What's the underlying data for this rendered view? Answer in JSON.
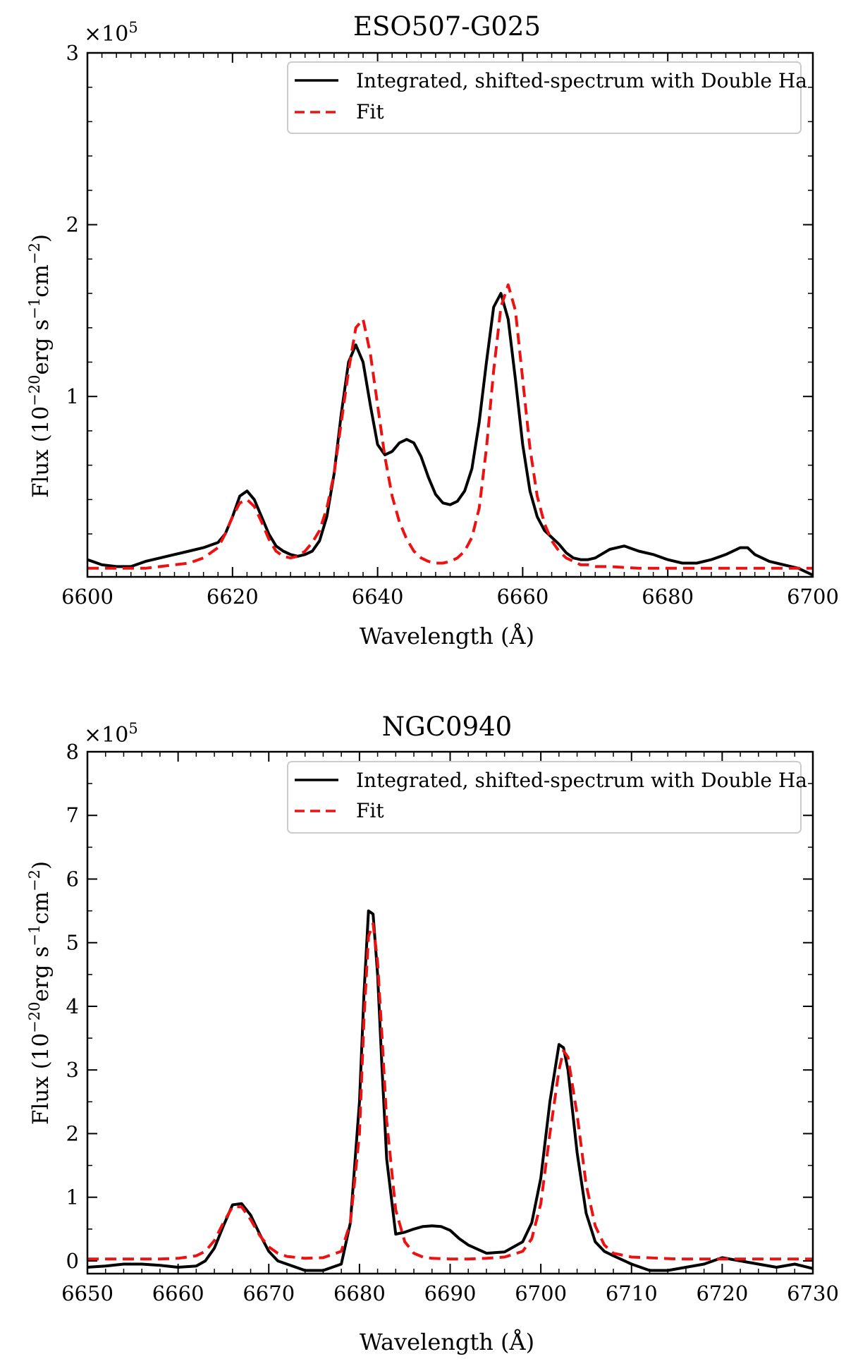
{
  "chart_data": [
    {
      "type": "line",
      "title": "ESO507-G025",
      "xlabel": "Wavelength (Å)",
      "ylabel": "Flux (10⁻²⁰erg s⁻¹cm⁻²)",
      "xlim": [
        6600,
        6700
      ],
      "ylim": [
        -0.05,
        3.0
      ],
      "y_multiplier": "×10⁵",
      "x_ticks": [
        6600,
        6620,
        6640,
        6660,
        6680,
        6700
      ],
      "y_ticks": [
        1,
        2,
        3
      ],
      "legend_position": "top-right",
      "series": [
        {
          "name": "Integrated, shifted-spectrum with Double Ha",
          "color": "#000000",
          "style": "solid",
          "x": [
            6600,
            6602,
            6604,
            6606,
            6608,
            6610,
            6612,
            6614,
            6616,
            6618,
            6619,
            6620,
            6621,
            6622,
            6623,
            6624,
            6625,
            6626,
            6627,
            6628,
            6629,
            6630,
            6631,
            6632,
            6633,
            6634,
            6635,
            6636,
            6637,
            6638,
            6639,
            6640,
            6641,
            6642,
            6643,
            6644,
            6645,
            6646,
            6647,
            6648,
            6649,
            6650,
            6651,
            6652,
            6653,
            6654,
            6655,
            6656,
            6657,
            6658,
            6659,
            6660,
            6661,
            6662,
            6663,
            6664,
            6665,
            6666,
            6667,
            6668,
            6669,
            6670,
            6672,
            6674,
            6676,
            6678,
            6680,
            6682,
            6684,
            6686,
            6688,
            6690,
            6691,
            6692,
            6694,
            6696,
            6698,
            6700
          ],
          "y": [
            0.05,
            0.02,
            0.01,
            0.01,
            0.04,
            0.06,
            0.08,
            0.1,
            0.12,
            0.15,
            0.2,
            0.3,
            0.42,
            0.45,
            0.4,
            0.3,
            0.2,
            0.13,
            0.1,
            0.08,
            0.07,
            0.08,
            0.1,
            0.16,
            0.3,
            0.55,
            0.9,
            1.2,
            1.3,
            1.2,
            0.95,
            0.72,
            0.66,
            0.68,
            0.73,
            0.75,
            0.73,
            0.65,
            0.53,
            0.43,
            0.38,
            0.37,
            0.39,
            0.45,
            0.58,
            0.85,
            1.2,
            1.52,
            1.6,
            1.45,
            1.1,
            0.72,
            0.45,
            0.3,
            0.22,
            0.18,
            0.14,
            0.09,
            0.06,
            0.05,
            0.05,
            0.06,
            0.11,
            0.13,
            0.1,
            0.08,
            0.05,
            0.03,
            0.03,
            0.05,
            0.08,
            0.12,
            0.12,
            0.08,
            0.04,
            0.02,
            0.0,
            -0.04
          ]
        },
        {
          "name": "Fit",
          "color": "#ee1111",
          "style": "dashed",
          "x": [
            6600,
            6602,
            6604,
            6606,
            6608,
            6610,
            6612,
            6614,
            6616,
            6618,
            6619,
            6620,
            6621,
            6622,
            6623,
            6624,
            6625,
            6626,
            6627,
            6628,
            6629,
            6630,
            6631,
            6632,
            6633,
            6634,
            6635,
            6636,
            6637,
            6638,
            6639,
            6640,
            6641,
            6642,
            6643,
            6644,
            6645,
            6646,
            6647,
            6648,
            6649,
            6650,
            6651,
            6652,
            6653,
            6654,
            6655,
            6656,
            6657,
            6658,
            6659,
            6660,
            6661,
            6662,
            6663,
            6664,
            6665,
            6666,
            6667,
            6668,
            6669,
            6670,
            6672,
            6676,
            6680,
            6684,
            6688,
            6692,
            6696,
            6700
          ],
          "y": [
            0.0,
            0.0,
            0.0,
            0.0,
            0.0,
            0.01,
            0.02,
            0.03,
            0.06,
            0.12,
            0.2,
            0.3,
            0.38,
            0.4,
            0.36,
            0.27,
            0.17,
            0.1,
            0.07,
            0.06,
            0.07,
            0.1,
            0.15,
            0.22,
            0.35,
            0.55,
            0.85,
            1.15,
            1.4,
            1.45,
            1.25,
            0.95,
            0.65,
            0.42,
            0.27,
            0.17,
            0.1,
            0.06,
            0.04,
            0.03,
            0.03,
            0.04,
            0.06,
            0.1,
            0.18,
            0.35,
            0.7,
            1.15,
            1.52,
            1.65,
            1.5,
            1.1,
            0.7,
            0.42,
            0.26,
            0.16,
            0.1,
            0.06,
            0.04,
            0.02,
            0.02,
            0.01,
            0.01,
            0.0,
            0.0,
            0.0,
            0.0,
            0.0,
            0.0,
            0.0
          ]
        }
      ]
    },
    {
      "type": "line",
      "title": "NGC0940",
      "xlabel": "Wavelength (Å)",
      "ylabel": "Flux (10⁻²⁰erg s⁻¹cm⁻²)",
      "xlim": [
        6650,
        6730
      ],
      "ylim": [
        -0.2,
        8.0
      ],
      "y_multiplier": "×10⁵",
      "x_ticks": [
        6650,
        6660,
        6670,
        6680,
        6690,
        6700,
        6710,
        6720,
        6730
      ],
      "y_ticks": [
        0,
        1,
        2,
        3,
        4,
        5,
        6,
        7,
        8
      ],
      "legend_position": "top-right",
      "series": [
        {
          "name": "Integrated, shifted-spectrum with Double Ha",
          "color": "#000000",
          "style": "solid",
          "x": [
            6650,
            6652,
            6654,
            6656,
            6658,
            6660,
            6662,
            6663,
            6664,
            6665,
            6666,
            6667,
            6668,
            6669,
            6670,
            6671,
            6672,
            6674,
            6676,
            6678,
            6679,
            6680,
            6680.5,
            6681,
            6681.5,
            6682,
            6682.5,
            6683,
            6684,
            6685,
            6686,
            6687,
            6688,
            6689,
            6690,
            6691,
            6692,
            6694,
            6696,
            6698,
            6699,
            6700,
            6701,
            6702,
            6702.5,
            6703,
            6704,
            6705,
            6706,
            6707,
            6708,
            6710,
            6712,
            6714,
            6716,
            6718,
            6720,
            6722,
            6724,
            6726,
            6728,
            6730
          ],
          "y": [
            -0.1,
            -0.08,
            -0.05,
            -0.05,
            -0.07,
            -0.1,
            -0.08,
            0.0,
            0.2,
            0.55,
            0.88,
            0.9,
            0.72,
            0.42,
            0.15,
            0.0,
            -0.05,
            -0.15,
            -0.15,
            -0.05,
            0.6,
            2.5,
            4.2,
            5.5,
            5.45,
            4.5,
            3.0,
            1.6,
            0.42,
            0.45,
            0.5,
            0.54,
            0.55,
            0.54,
            0.48,
            0.35,
            0.25,
            0.12,
            0.14,
            0.3,
            0.6,
            1.3,
            2.5,
            3.4,
            3.35,
            3.0,
            1.7,
            0.75,
            0.3,
            0.15,
            0.08,
            -0.05,
            -0.15,
            -0.15,
            -0.1,
            -0.05,
            0.05,
            0.0,
            -0.05,
            -0.1,
            -0.05,
            -0.12
          ]
        },
        {
          "name": "Fit",
          "color": "#ee1111",
          "style": "dashed",
          "x": [
            6650,
            6652,
            6654,
            6656,
            6658,
            6660,
            6662,
            6663,
            6664,
            6665,
            6666,
            6667,
            6668,
            6669,
            6670,
            6671,
            6672,
            6674,
            6676,
            6678,
            6679,
            6680,
            6680.5,
            6681,
            6681.5,
            6682,
            6682.5,
            6683,
            6684,
            6685,
            6686,
            6687,
            6688,
            6690,
            6692,
            6694,
            6696,
            6698,
            6699,
            6700,
            6701,
            6702,
            6702.5,
            6703,
            6704,
            6705,
            6706,
            6707,
            6708,
            6710,
            6715,
            6720,
            6725,
            6730
          ],
          "y": [
            0.03,
            0.03,
            0.03,
            0.03,
            0.03,
            0.04,
            0.08,
            0.15,
            0.32,
            0.6,
            0.85,
            0.85,
            0.65,
            0.4,
            0.22,
            0.12,
            0.07,
            0.04,
            0.05,
            0.15,
            0.6,
            2.0,
            3.8,
            5.1,
            5.3,
            4.7,
            3.5,
            2.2,
            0.8,
            0.3,
            0.12,
            0.06,
            0.04,
            0.03,
            0.03,
            0.04,
            0.06,
            0.15,
            0.35,
            0.9,
            2.0,
            3.0,
            3.3,
            3.2,
            2.3,
            1.2,
            0.55,
            0.25,
            0.12,
            0.06,
            0.03,
            0.03,
            0.03,
            0.03
          ]
        }
      ]
    }
  ]
}
